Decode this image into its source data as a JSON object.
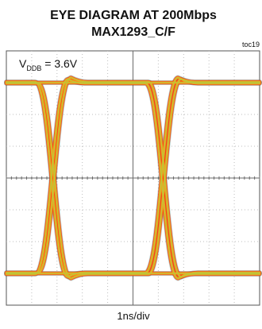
{
  "chart_data": {
    "type": "line",
    "title": "EYE DIAGRAM AT 200Mbps",
    "subtitle": "MAX1293_C/F",
    "figure_tag": "toc19",
    "annotation": {
      "main": "V",
      "subscript": "DDB",
      "value": " = 3.6V"
    },
    "xlabel": "1ns/div",
    "ylabel": "",
    "grid": true,
    "x_divisions": 10,
    "y_divisions": 8,
    "eye": {
      "level_high": 3,
      "level_low": -3,
      "crossing_level": 0,
      "crossings_div": [
        1.85,
        6.2
      ],
      "transition_width_div": 1.3,
      "overshoot_div": 0.22
    },
    "colors": {
      "background": "#ffffff",
      "grid": "#bdbdbd",
      "center_axis": "#6a6a6a",
      "frame": "#555555",
      "trace_outer": "#f03c14",
      "trace_mid": "#f7a21b",
      "trace_inner": "#b9c83a",
      "trace_noise": "#2a7a6a"
    }
  }
}
